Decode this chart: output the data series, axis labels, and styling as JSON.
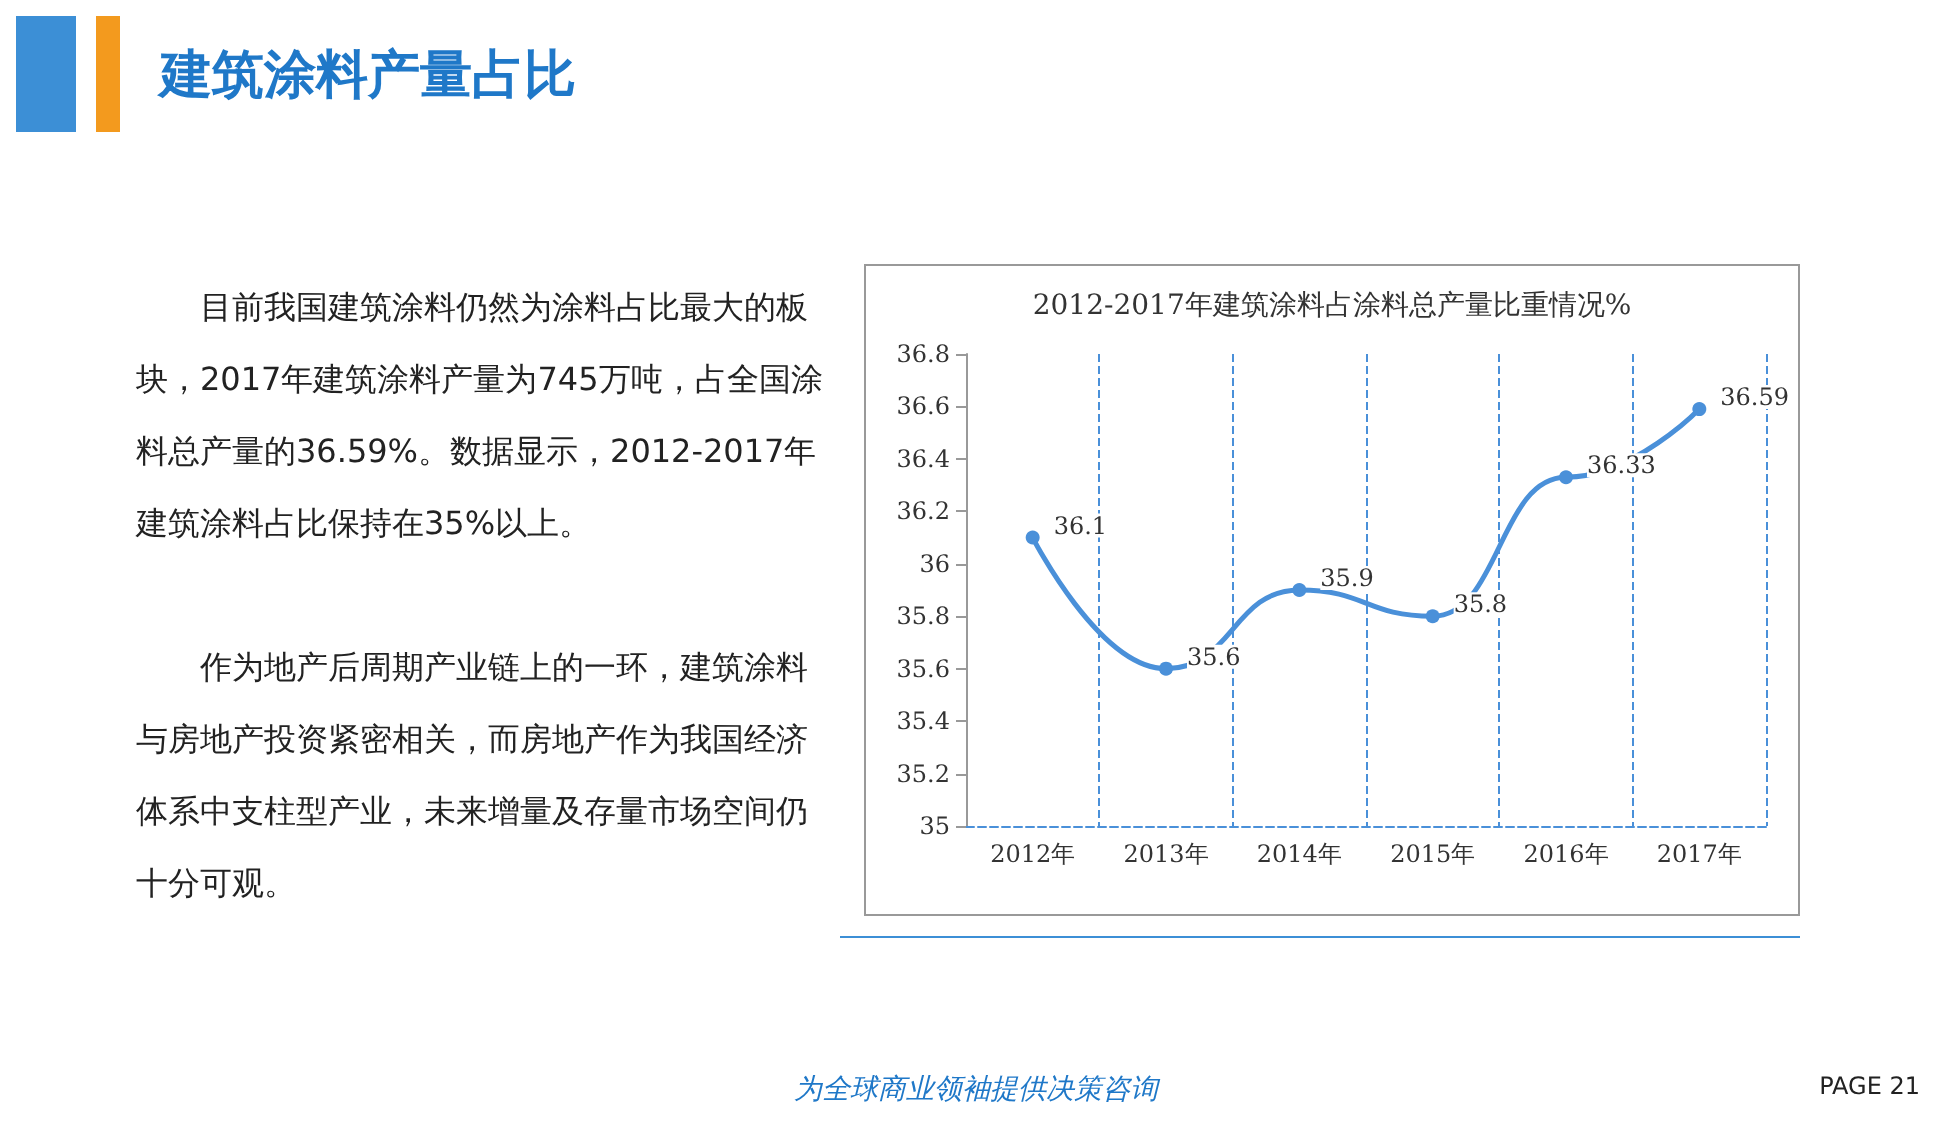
{
  "chart_data": {
    "type": "line",
    "title": "2012-2017年建筑涂料占涂料总产量比重情况%",
    "categories": [
      "2012年",
      "2013年",
      "2014年",
      "2015年",
      "2016年",
      "2017年"
    ],
    "series": [
      {
        "color": "#4a90d9",
        "values": [
          36.1,
          35.6,
          35.9,
          35.8,
          36.33,
          36.59
        ]
      }
    ],
    "ylim": [
      35,
      36.8
    ],
    "yticks": [
      35,
      35.2,
      35.4,
      35.6,
      35.8,
      36,
      36.2,
      36.4,
      36.6,
      36.8
    ],
    "grid": "x",
    "marker": "circle",
    "line_style": "solid",
    "data_labels": true,
    "annotations": [
      "建筑涂料产量占比",
      "目前我国建筑涂料仍然为涂料占比最大的板块，2017年建筑涂料产量为745万吨，占全国涂料总产量的36.59%。数据显示，2012-2017年建筑涂料占比保持在35%以上。",
      "作为地产后周期产业链上的一环，建筑涂料与房地产投资紧密相关，而房地产作为我国经济体系中支柱型产业，未来增量及存量市场空间仍十分可观。",
      "为全球商业领袖提供决策咨询",
      "PAGE 21"
    ]
  }
}
